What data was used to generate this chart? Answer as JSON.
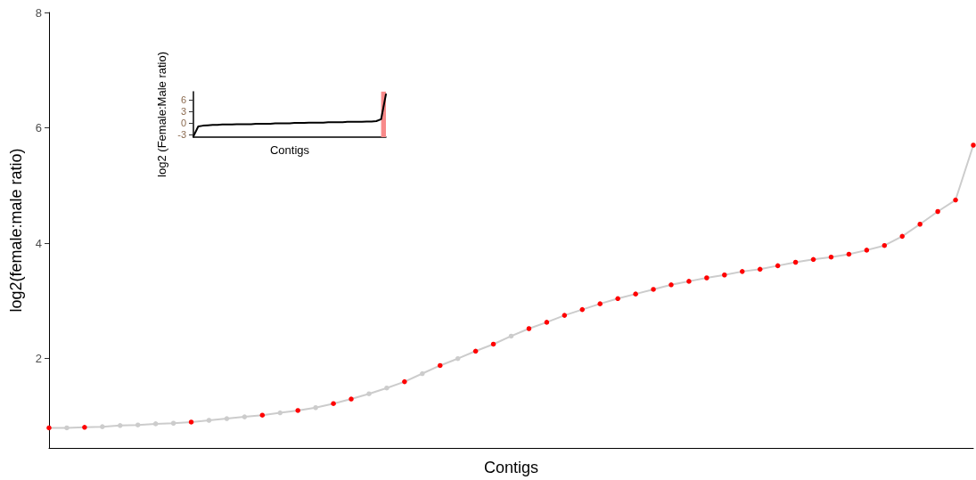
{
  "chart_data": [
    {
      "type": "line",
      "xlabel": "Contigs",
      "ylabel": "log2(female:male ratio)",
      "ylim": [
        0.45,
        8
      ],
      "yticks": [
        2,
        4,
        6,
        8
      ],
      "categories": [
        null,
        null,
        null,
        null,
        null,
        null,
        null,
        null,
        null,
        null,
        null,
        null,
        null,
        null,
        null,
        null,
        null,
        null,
        null,
        null,
        null,
        null,
        null,
        null,
        null,
        null,
        null,
        null,
        null,
        null,
        null,
        null,
        null,
        null,
        null,
        null,
        null,
        null,
        null,
        null,
        null,
        null,
        null,
        null,
        null,
        null,
        null,
        null,
        null,
        null,
        null,
        null,
        null
      ],
      "series": [
        {
          "color": "#cccccc",
          "values": [
            0.8,
            0.8,
            0.81,
            0.82,
            0.84,
            0.85,
            0.87,
            0.88,
            0.9,
            0.93,
            0.96,
            0.99,
            1.02,
            1.06,
            1.1,
            1.15,
            1.22,
            1.3,
            1.39,
            1.49,
            1.6,
            1.74,
            1.88,
            2.0,
            2.13,
            2.25,
            2.39,
            2.52,
            2.63,
            2.75,
            2.85,
            2.95,
            3.04,
            3.12,
            3.2,
            3.28,
            3.34,
            3.4,
            3.45,
            3.51,
            3.55,
            3.61,
            3.67,
            3.72,
            3.76,
            3.81,
            3.88,
            3.96,
            4.12,
            4.33,
            4.55,
            4.75,
            5.7
          ],
          "colors": [
            "#ff0000",
            "#cccccc",
            "#ff0000",
            "#cccccc",
            "#cccccc",
            "#cccccc",
            "#cccccc",
            "#cccccc",
            "#ff0000",
            "#cccccc",
            "#cccccc",
            "#cccccc",
            "#ff0000",
            "#cccccc",
            "#ff0000",
            "#cccccc",
            "#ff0000",
            "#ff0000",
            "#cccccc",
            "#cccccc",
            "#ff0000",
            "#cccccc",
            "#ff0000",
            "#cccccc",
            "#ff0000",
            "#ff0000",
            "#cccccc",
            "#ff0000",
            "#ff0000",
            "#ff0000",
            "#ff0000",
            "#ff0000",
            "#ff0000",
            "#ff0000",
            "#ff0000",
            "#ff0000",
            "#ff0000",
            "#ff0000",
            "#ff0000",
            "#ff0000",
            "#ff0000",
            "#ff0000",
            "#ff0000",
            "#ff0000",
            "#ff0000",
            "#ff0000",
            "#ff0000",
            "#ff0000",
            "#ff0000",
            "#ff0000",
            "#ff0000",
            "#ff0000",
            "#ff0000"
          ]
        }
      ]
    },
    {
      "type": "line",
      "xlabel": "Contigs",
      "ylabel": "log2 (Female:Male ratio)",
      "tick_labels": "y",
      "ylim": [
        -3.7,
        8.2
      ],
      "yticks": [
        -3,
        0,
        3,
        6
      ],
      "categories": [
        null,
        null,
        null,
        null,
        null,
        null,
        null,
        null,
        null,
        null,
        null,
        null,
        null,
        null,
        null,
        null,
        null,
        null,
        null,
        null,
        null,
        null,
        null,
        null,
        null,
        null,
        null,
        null,
        null,
        null,
        null,
        null,
        null,
        null,
        null,
        null,
        null,
        null,
        null,
        null,
        null
      ],
      "series": [
        {
          "color": "#000000",
          "values": [
            -3.5,
            -0.9,
            -0.7,
            -0.6,
            -0.5,
            -0.5,
            -0.4,
            -0.4,
            -0.4,
            -0.3,
            -0.3,
            -0.3,
            -0.3,
            -0.2,
            -0.2,
            -0.2,
            -0.2,
            -0.1,
            -0.1,
            -0.1,
            -0.1,
            0,
            0,
            0,
            0.1,
            0.1,
            0.1,
            0.1,
            0.2,
            0.2,
            0.2,
            0.2,
            0.3,
            0.3,
            0.3,
            0.3,
            0.4,
            0.4,
            0.5,
            1.0,
            7.5
          ]
        }
      ]
    }
  ]
}
